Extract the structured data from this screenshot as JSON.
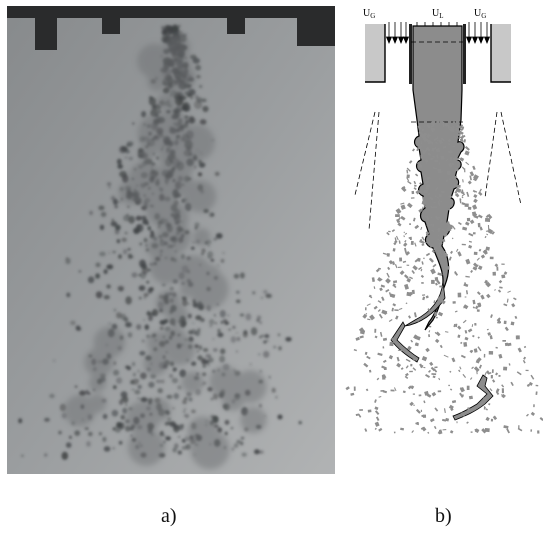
{
  "captions": {
    "a": "a)",
    "b": "b)"
  },
  "schematic": {
    "labels": {
      "gas_left": "U",
      "gas_left_sub": "G",
      "liquid": "U",
      "liquid_sub": "L",
      "gas_right": "U",
      "gas_right_sub": "G"
    },
    "colors": {
      "liquid": "#8c8c8c",
      "nozzle_wall": "#c8c8c8",
      "droplets": "#8e8e8e",
      "line": "#000000"
    }
  },
  "photo": {
    "colors": {
      "background_top": "#8f9294",
      "background_bottom": "#a7aaab",
      "spray": "#3f4244",
      "nozzle": "#2a2b2c"
    }
  }
}
